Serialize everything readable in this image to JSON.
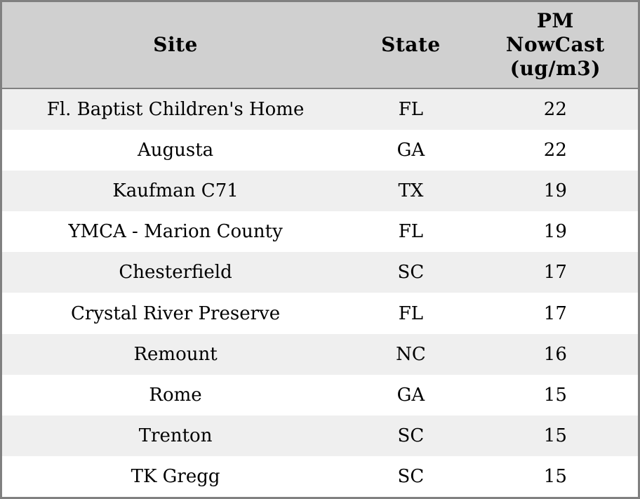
{
  "chart_data": {
    "type": "table",
    "title": "",
    "columns": [
      "Site",
      "State",
      "PM\nNowCast\n(ug/m3)"
    ],
    "rows": [
      [
        "Fl. Baptist Children's Home",
        "FL",
        22
      ],
      [
        "Augusta",
        "GA",
        22
      ],
      [
        "Kaufman C71",
        "TX",
        19
      ],
      [
        "YMCA - Marion County",
        "FL",
        19
      ],
      [
        "Chesterfield",
        "SC",
        17
      ],
      [
        "Crystal River Preserve",
        "FL",
        17
      ],
      [
        "Remount",
        "NC",
        16
      ],
      [
        "Rome",
        "GA",
        15
      ],
      [
        "Trenton",
        "SC",
        15
      ],
      [
        "TK Gregg",
        "SC",
        15
      ]
    ],
    "units": "ug/m3",
    "layout_hints": {
      "striped": true,
      "text_align": "center"
    }
  },
  "colors": {
    "header_bg": "#d0d0d0",
    "stripe_row_bg": "#efefef",
    "plain_row_bg": "#ffffff",
    "border": "#808080",
    "text": "#000000"
  }
}
